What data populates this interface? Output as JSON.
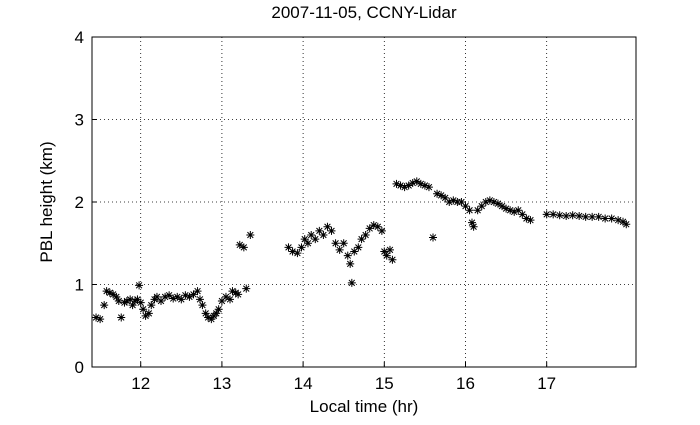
{
  "chart_data": {
    "type": "scatter",
    "title": "2007-11-05, CCNY-Lidar",
    "x_label": "Local time (hr)",
    "y_label": "PBL height (km)",
    "color": "#000000",
    "grid": true,
    "xlim": [
      11.4,
      18.1
    ],
    "ylim": [
      0,
      4
    ],
    "xticks": [
      12,
      13,
      14,
      15,
      16,
      17
    ],
    "yticks": [
      0,
      1,
      2,
      3,
      4
    ],
    "x": [
      11.45,
      11.5,
      11.55,
      11.58,
      11.62,
      11.66,
      11.7,
      11.73,
      11.76,
      11.8,
      11.83,
      11.87,
      11.9,
      11.93,
      11.96,
      11.98,
      12.0,
      12.03,
      12.06,
      12.1,
      12.13,
      12.17,
      12.2,
      12.25,
      12.3,
      12.35,
      12.4,
      12.45,
      12.5,
      12.55,
      12.6,
      12.65,
      12.7,
      12.73,
      12.76,
      12.8,
      12.83,
      12.87,
      12.9,
      12.93,
      12.96,
      13.0,
      13.05,
      13.1,
      13.13,
      13.17,
      13.2,
      13.3,
      13.22,
      13.27,
      13.35,
      13.82,
      13.87,
      13.93,
      13.98,
      14.02,
      14.06,
      14.1,
      14.15,
      14.2,
      14.25,
      14.3,
      14.35,
      14.4,
      14.45,
      14.5,
      14.55,
      14.58,
      14.6,
      14.63,
      14.68,
      14.72,
      14.77,
      14.82,
      14.87,
      14.92,
      14.97,
      15.0,
      15.03,
      15.07,
      15.1,
      15.15,
      15.2,
      15.25,
      15.3,
      15.35,
      15.4,
      15.45,
      15.5,
      15.55,
      15.6,
      15.65,
      15.7,
      15.75,
      15.8,
      15.85,
      15.9,
      15.95,
      16.0,
      16.05,
      16.08,
      16.1,
      16.15,
      16.2,
      16.25,
      16.3,
      16.35,
      16.4,
      16.45,
      16.5,
      16.55,
      16.6,
      16.65,
      16.7,
      16.75,
      16.8,
      17.0,
      17.08,
      17.16,
      17.24,
      17.32,
      17.4,
      17.48,
      17.56,
      17.64,
      17.72,
      17.8,
      17.88,
      17.94,
      17.98
    ],
    "values": [
      0.6,
      0.58,
      0.75,
      0.92,
      0.9,
      0.88,
      0.85,
      0.8,
      0.6,
      0.78,
      0.8,
      0.82,
      0.75,
      0.8,
      0.82,
      0.99,
      0.78,
      0.7,
      0.62,
      0.65,
      0.75,
      0.82,
      0.85,
      0.8,
      0.85,
      0.87,
      0.83,
      0.85,
      0.82,
      0.87,
      0.85,
      0.88,
      0.92,
      0.82,
      0.75,
      0.65,
      0.6,
      0.58,
      0.62,
      0.65,
      0.7,
      0.8,
      0.85,
      0.82,
      0.92,
      0.9,
      0.88,
      0.95,
      1.48,
      1.45,
      1.6,
      1.45,
      1.4,
      1.38,
      1.45,
      1.55,
      1.5,
      1.6,
      1.55,
      1.65,
      1.6,
      1.7,
      1.65,
      1.5,
      1.42,
      1.5,
      1.35,
      1.25,
      1.02,
      1.4,
      1.45,
      1.55,
      1.6,
      1.68,
      1.72,
      1.7,
      1.65,
      1.4,
      1.35,
      1.42,
      1.3,
      2.22,
      2.2,
      2.18,
      2.2,
      2.23,
      2.25,
      2.22,
      2.2,
      2.18,
      1.57,
      2.1,
      2.08,
      2.05,
      2.0,
      2.02,
      2.0,
      2.0,
      1.95,
      1.9,
      1.75,
      1.7,
      1.9,
      1.95,
      2.0,
      2.02,
      2.0,
      1.98,
      1.95,
      1.92,
      1.9,
      1.88,
      1.9,
      1.85,
      1.8,
      1.78,
      1.85,
      1.85,
      1.84,
      1.83,
      1.84,
      1.83,
      1.82,
      1.82,
      1.82,
      1.8,
      1.8,
      1.78,
      1.76,
      1.73
    ]
  }
}
